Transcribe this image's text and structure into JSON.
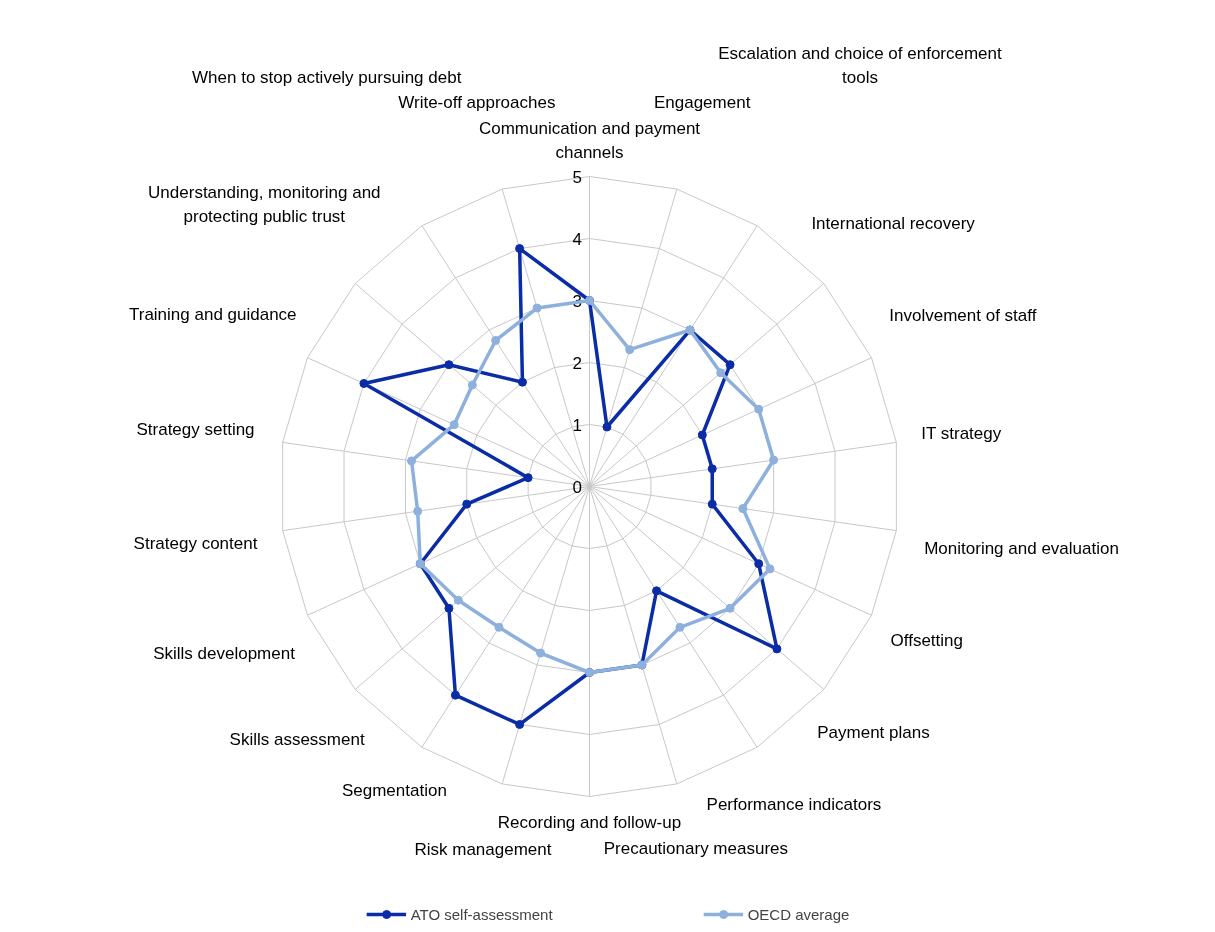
{
  "chart_data": {
    "type": "radar",
    "categories": [
      "Communication and payment\nchannels",
      "Engagement",
      "Escalation and choice of enforcement\ntools",
      "International recovery",
      "Involvement of staff",
      "IT strategy",
      "Monitoring and evaluation",
      "Offsetting",
      "Payment plans",
      "Performance indicators",
      "Precautionary measures",
      "Recording and follow-up",
      "Risk management",
      "Segmentation",
      "Skills assessment",
      "Skills development",
      "Strategy content",
      "Strategy setting",
      "Training and guidance",
      "Understanding, monitoring and\nprotecting public trust",
      "When to stop actively pursuing debt",
      "Write-off approaches"
    ],
    "series": [
      {
        "name": "ATO self-assessment",
        "color": "#0a2ca6",
        "values": [
          3,
          1,
          3,
          3,
          2,
          2,
          2,
          3,
          4,
          2,
          3,
          3,
          4,
          4,
          3,
          3,
          2,
          1,
          4,
          3,
          2,
          4
        ]
      },
      {
        "name": "OECD average",
        "color": "#8eb0dc",
        "values": [
          3,
          2.3,
          3,
          2.8,
          3,
          3,
          2.5,
          3.2,
          3,
          2.7,
          3,
          3,
          2.8,
          2.7,
          2.8,
          3,
          2.8,
          2.9,
          2.4,
          2.5,
          2.8,
          3
        ]
      }
    ],
    "ylim": [
      0,
      5
    ],
    "yticks": [
      0,
      1,
      2,
      3,
      4,
      5
    ],
    "grid": true,
    "marker": "circle",
    "legend": "bottom"
  }
}
